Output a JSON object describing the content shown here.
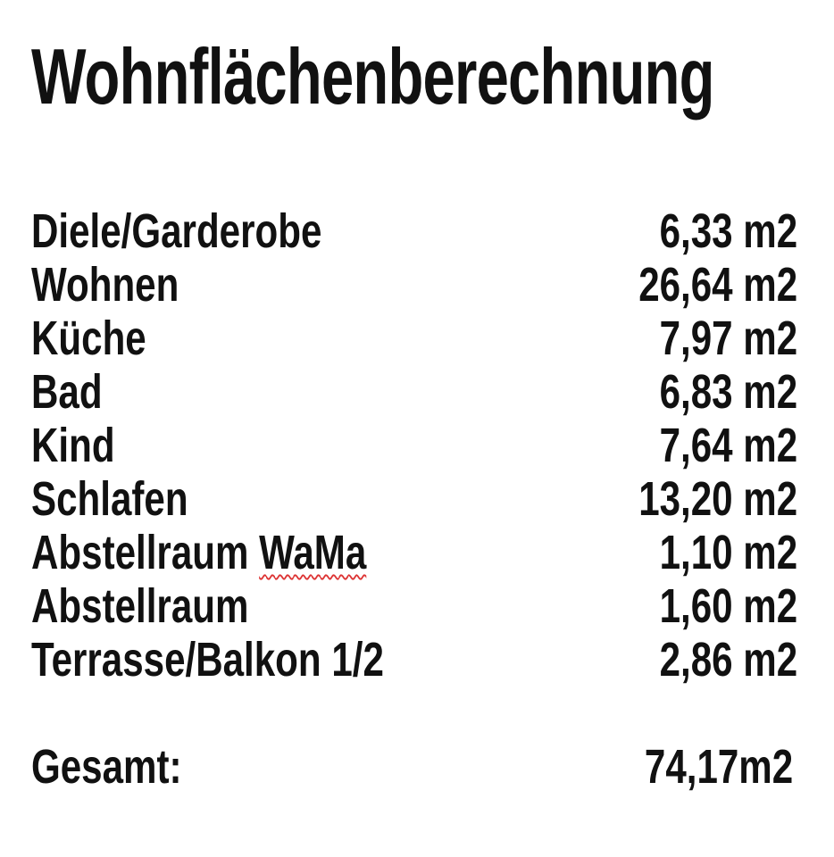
{
  "title": "Wohnflächenberechnung",
  "rooms": [
    {
      "label": "Diele/Garderobe",
      "value": "6,33 m2"
    },
    {
      "label": "Wohnen",
      "value": "26,64 m2"
    },
    {
      "label": "Küche",
      "value": "7,97 m2"
    },
    {
      "label": "Bad",
      "value": "6,83 m2"
    },
    {
      "label": "Kind",
      "value": "7,64 m2"
    },
    {
      "label": "Schlafen",
      "value": "13,20 m2"
    },
    {
      "label_prefix": "Abstellraum ",
      "label_flagged": "WaMa",
      "value": "1,10 m2"
    },
    {
      "label": "Abstellraum",
      "value": "1,60 m2"
    },
    {
      "label": "Terrasse/Balkon 1/2",
      "value": "2,86 m2"
    }
  ],
  "total": {
    "label": "Gesamt:",
    "value": "74,17m2"
  },
  "colors": {
    "text": "#111111",
    "spellcheck_underline": "#dd3333"
  }
}
